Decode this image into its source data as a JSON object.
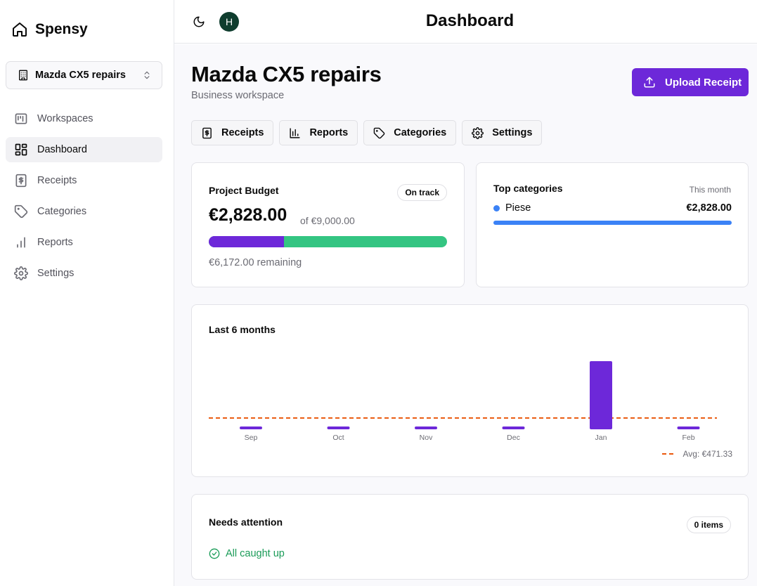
{
  "app": {
    "name": "Spensy"
  },
  "sidebar": {
    "workspace_select": "Mazda CX5 repairs",
    "items": [
      {
        "label": "Workspaces",
        "icon": "workspaces-icon"
      },
      {
        "label": "Dashboard",
        "icon": "dashboard-icon",
        "active": true
      },
      {
        "label": "Receipts",
        "icon": "receipt-icon"
      },
      {
        "label": "Categories",
        "icon": "tag-icon"
      },
      {
        "label": "Reports",
        "icon": "bar-chart-icon"
      },
      {
        "label": "Settings",
        "icon": "gear-icon"
      }
    ]
  },
  "header": {
    "title": "Dashboard",
    "avatar_initial": "H"
  },
  "page": {
    "title": "Mazda CX5 repairs",
    "subtitle": "Business workspace",
    "upload_label": "Upload Receipt",
    "tabs": [
      {
        "label": "Receipts",
        "icon": "receipt-icon"
      },
      {
        "label": "Reports",
        "icon": "bar-chart-icon"
      },
      {
        "label": "Categories",
        "icon": "tag-icon"
      },
      {
        "label": "Settings",
        "icon": "gear-icon"
      }
    ]
  },
  "budget": {
    "title": "Project Budget",
    "status": "On track",
    "spent": "€2,828.00",
    "total": "of €9,000.00",
    "remaining": "€6,172.00 remaining",
    "spent_fraction": 0.3142
  },
  "top_categories": {
    "title": "Top categories",
    "period": "This month",
    "items": [
      {
        "name": "Piese",
        "value": "€2,828.00",
        "fraction": 1.0
      }
    ]
  },
  "chart_data": {
    "type": "bar",
    "title": "Last 6 months",
    "categories": [
      "Sep",
      "Oct",
      "Nov",
      "Dec",
      "Jan",
      "Feb"
    ],
    "values": [
      0,
      0,
      0,
      0,
      2828,
      0
    ],
    "average": 471.33,
    "avg_label": "Avg: €471.33",
    "bar_color": "#6d28d9",
    "avg_color": "#ea580c"
  },
  "attention": {
    "title": "Needs attention",
    "count": "0 items",
    "message": "All caught up"
  },
  "colors": {
    "accent": "#6d28d9",
    "success": "#34c582",
    "category": "#3b82f6"
  }
}
